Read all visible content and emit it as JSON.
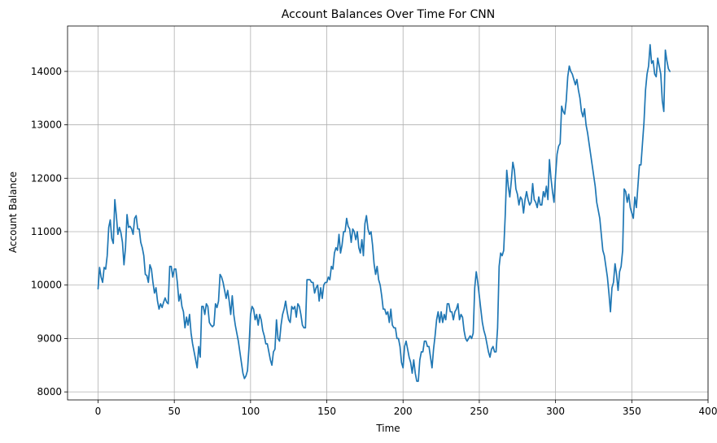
{
  "chart_data": {
    "type": "line",
    "title": "Account Balances Over Time For CNN",
    "xlabel": "Time",
    "ylabel": "Account Balance",
    "xlim": [
      -20,
      400
    ],
    "ylim": [
      7850,
      14850
    ],
    "x_ticks": [
      0,
      50,
      100,
      150,
      200,
      250,
      300,
      350,
      400
    ],
    "y_ticks": [
      8000,
      9000,
      10000,
      11000,
      12000,
      13000,
      14000
    ],
    "grid": true,
    "series": [
      {
        "color": "#1f77b4",
        "x_start": 0,
        "x_step": 1,
        "values": [
          9930,
          10330,
          10150,
          10050,
          10330,
          10300,
          10550,
          11080,
          11220,
          10870,
          10780,
          11600,
          11300,
          10950,
          11080,
          10980,
          10800,
          10380,
          10700,
          11320,
          11080,
          11100,
          11050,
          10950,
          11250,
          11300,
          11050,
          11050,
          10800,
          10700,
          10550,
          10200,
          10180,
          10050,
          10380,
          10300,
          10050,
          9850,
          9950,
          9700,
          9550,
          9650,
          9580,
          9680,
          9760,
          9680,
          9650,
          10350,
          10350,
          10150,
          10300,
          10300,
          10050,
          9700,
          9830,
          9600,
          9500,
          9200,
          9400,
          9250,
          9450,
          9100,
          8900,
          8750,
          8600,
          8450,
          8850,
          8650,
          9600,
          9600,
          9450,
          9650,
          9600,
          9300,
          9250,
          9220,
          9250,
          9650,
          9580,
          9700,
          10200,
          10150,
          10050,
          9900,
          9750,
          9900,
          9700,
          9450,
          9800,
          9450,
          9250,
          9100,
          8950,
          8750,
          8550,
          8350,
          8250,
          8300,
          8400,
          8850,
          9450,
          9600,
          9550,
          9350,
          9450,
          9250,
          9450,
          9350,
          9150,
          9050,
          8900,
          8900,
          8750,
          8600,
          8500,
          8750,
          8800,
          9350,
          9000,
          8950,
          9250,
          9450,
          9550,
          9700,
          9500,
          9350,
          9300,
          9600,
          9550,
          9600,
          9400,
          9650,
          9600,
          9450,
          9250,
          9200,
          9200,
          10100,
          10100,
          10100,
          10050,
          10050,
          9850,
          9950,
          10000,
          9700,
          9950,
          9750,
          10000,
          10050,
          10050,
          10150,
          10100,
          10350,
          10300,
          10600,
          10700,
          10650,
          10950,
          10600,
          10750,
          11000,
          11000,
          11250,
          11100,
          11050,
          10800,
          11050,
          11000,
          10850,
          11000,
          10700,
          10600,
          10850,
          10550,
          11150,
          11300,
          11050,
          10950,
          11000,
          10750,
          10400,
          10200,
          10350,
          10100,
          10000,
          9800,
          9550,
          9550,
          9450,
          9500,
          9300,
          9550,
          9250,
          9200,
          9200,
          9000,
          9000,
          8850,
          8550,
          8450,
          8850,
          8950,
          8800,
          8650,
          8550,
          8350,
          8600,
          8350,
          8200,
          8200,
          8600,
          8750,
          8750,
          8950,
          8950,
          8850,
          8850,
          8650,
          8450,
          8800,
          9050,
          9350,
          9500,
          9300,
          9500,
          9300,
          9450,
          9350,
          9650,
          9650,
          9500,
          9500,
          9350,
          9500,
          9550,
          9650,
          9350,
          9450,
          9400,
          9150,
          9000,
          8950,
          9000,
          9050,
          9000,
          9100,
          9950,
          10250,
          10050,
          9800,
          9550,
          9300,
          9150,
          9050,
          8900,
          8750,
          8650,
          8800,
          8850,
          8750,
          8750,
          9200,
          10350,
          10600,
          10550,
          10650,
          11300,
          12150,
          11850,
          11650,
          11950,
          12300,
          12150,
          11800,
          11700,
          11500,
          11650,
          11600,
          11350,
          11600,
          11750,
          11600,
          11500,
          11550,
          11900,
          11600,
          11550,
          11450,
          11650,
          11500,
          11500,
          11750,
          11650,
          11850,
          11600,
          12350,
          12000,
          11750,
          11550,
          12050,
          12450,
          12600,
          12650,
          13350,
          13250,
          13200,
          13450,
          13900,
          14100,
          14000,
          13950,
          13850,
          13750,
          13850,
          13650,
          13500,
          13250,
          13150,
          13300,
          13000,
          12850,
          12650,
          12450,
          12250,
          12050,
          11850,
          11550,
          11400,
          11250,
          10950,
          10650,
          10550,
          10350,
          10150,
          9850,
          9500,
          9950,
          10050,
          10400,
          10200,
          9900,
          10250,
          10350,
          10650,
          11800,
          11750,
          11550,
          11700,
          11450,
          11350,
          11250,
          11650,
          11450,
          11850,
          12250,
          12250,
          12650,
          13050,
          13650,
          13950,
          14100,
          14500,
          14150,
          14200,
          13950,
          13900,
          14250,
          14100,
          13950,
          13450,
          13250,
          14400,
          14200,
          14050,
          14000
        ]
      }
    ]
  }
}
